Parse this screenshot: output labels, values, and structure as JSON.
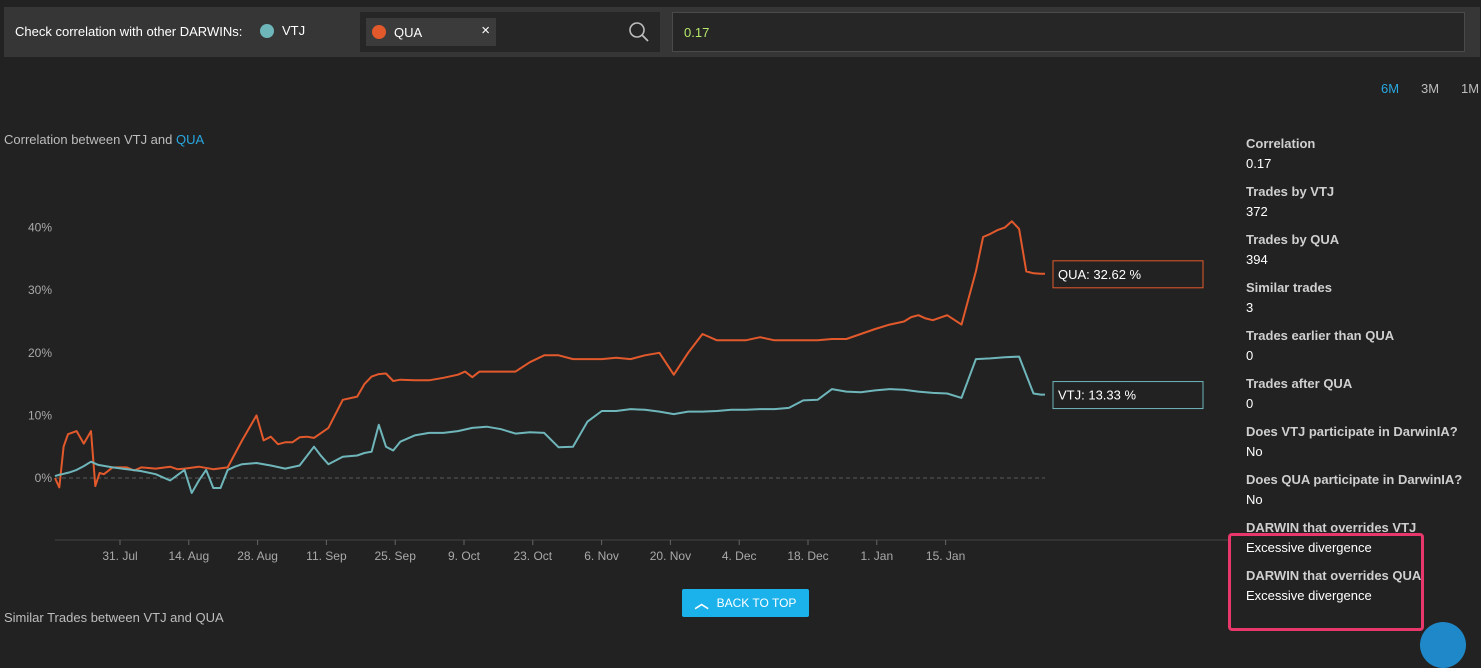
{
  "topbar": {
    "label": "Check correlation with other DARWINs:",
    "primary": {
      "name": "VTJ",
      "color": "#6fb6bb"
    },
    "compare": {
      "name": "QUA",
      "color": "#e2592c",
      "close": "×"
    },
    "search_icon": "search-icon",
    "correlation_value": "0.17"
  },
  "ranges": [
    {
      "label": "6M",
      "active": true
    },
    {
      "label": "3M",
      "active": false
    },
    {
      "label": "1M",
      "active": false
    }
  ],
  "chart_title": {
    "prefix": "Correlation between VTJ and",
    "highlight": "QUA"
  },
  "chart_data": {
    "type": "line",
    "yticks": [
      "40%",
      "30%",
      "20%",
      "10%",
      "0%"
    ],
    "ylim": [
      -10,
      50
    ],
    "xticks": [
      "31. Jul",
      "14. Aug",
      "28. Aug",
      "11. Sep",
      "25. Sep",
      "9. Oct",
      "23. Oct",
      "6. Nov",
      "20. Nov",
      "4. Dec",
      "18. Dec",
      "1. Jan",
      "15. Jan"
    ],
    "tooltips": [
      {
        "series": "QUA",
        "text": "QUA: 32.62 %"
      },
      {
        "series": "VTJ",
        "text": "VTJ: 13.33 %"
      }
    ],
    "series": [
      {
        "name": "QUA",
        "color": "#e2592c",
        "x": [
          0,
          0.6,
          1.2,
          1.8,
          3,
          4,
          5,
          5.6,
          6.2,
          6.8,
          8,
          10,
          11,
          12,
          14,
          16,
          17,
          18,
          20,
          22,
          24,
          26,
          28,
          29,
          30,
          31,
          32,
          33,
          34,
          35,
          36,
          38,
          40,
          42,
          43,
          44,
          45,
          46,
          47,
          48,
          50,
          52,
          54,
          56,
          57,
          58,
          59,
          60,
          62,
          64,
          66,
          68,
          70,
          72,
          74,
          76,
          78,
          80,
          82,
          84,
          86,
          88,
          90,
          92,
          94,
          96,
          98,
          100,
          102,
          104,
          106,
          108,
          110,
          112,
          114,
          116,
          118,
          119,
          120,
          121,
          122,
          124,
          126,
          128,
          129,
          130,
          131,
          132,
          133,
          134,
          135,
          136,
          137,
          137.6
        ],
        "y": [
          0,
          -1.5,
          5,
          7,
          7.5,
          5.5,
          7.5,
          -1.3,
          0.8,
          0.6,
          1.7,
          1.7,
          1.2,
          1.7,
          1.5,
          1.8,
          1.4,
          1.5,
          1.8,
          1.4,
          1.7,
          6,
          10,
          6,
          6.6,
          5.4,
          5.7,
          5.7,
          6.5,
          6.6,
          6.4,
          8,
          12.5,
          13,
          15,
          16.2,
          16.6,
          16.7,
          15.5,
          15.7,
          15.6,
          15.6,
          16,
          16.5,
          17,
          16.1,
          17,
          17,
          17,
          17,
          18.5,
          19.6,
          19.6,
          19,
          19,
          19,
          19.2,
          19,
          19.6,
          20,
          16.5,
          20,
          23,
          22,
          22,
          22,
          22.5,
          22,
          22,
          22,
          22,
          22.2,
          22.2,
          23,
          23.8,
          24.5,
          25,
          25.7,
          26,
          25.5,
          25.2,
          26,
          24.5,
          33,
          38.5,
          39,
          39.6,
          40,
          41,
          39.8,
          33,
          32.7,
          32.62,
          32.62
        ]
      },
      {
        "name": "VTJ",
        "color": "#6fb6bb",
        "x": [
          0,
          0.5,
          1,
          2,
          3,
          4,
          5,
          6,
          8,
          10,
          12,
          14,
          16,
          18,
          19,
          20,
          21,
          22,
          23,
          24,
          25,
          26,
          28,
          30,
          32,
          34,
          36,
          37,
          38,
          40,
          42,
          43,
          44,
          45,
          46,
          47,
          48,
          50,
          52,
          54,
          56,
          58,
          60,
          62,
          64,
          66,
          68,
          70,
          72,
          74,
          76,
          78,
          80,
          82,
          84,
          86,
          88,
          90,
          92,
          94,
          96,
          98,
          100,
          102,
          104,
          106,
          108,
          110,
          112,
          114,
          116,
          118,
          120,
          122,
          124,
          126,
          128,
          130,
          132,
          134,
          136,
          137,
          137.6
        ],
        "y": [
          0.3,
          0.5,
          0.6,
          0.9,
          1.3,
          1.9,
          2.6,
          2.1,
          1.7,
          1.4,
          1.1,
          0.6,
          -0.4,
          1.3,
          -2.4,
          -0.4,
          1.3,
          -1.6,
          -1.6,
          1.3,
          1.8,
          2.2,
          2.4,
          2,
          1.5,
          2,
          5,
          3.5,
          2.2,
          3.4,
          3.6,
          4,
          4.2,
          8.5,
          5,
          4.4,
          5.8,
          6.8,
          7.2,
          7.2,
          7.5,
          8,
          8.2,
          7.8,
          7.1,
          7.3,
          7.2,
          4.9,
          5,
          9,
          10.7,
          10.7,
          11,
          10.9,
          10.6,
          10.2,
          10.6,
          10.6,
          10.7,
          10.9,
          10.9,
          11,
          11,
          11.2,
          12.4,
          12.5,
          14.2,
          13.8,
          13.7,
          14,
          14.2,
          14.1,
          13.8,
          13.6,
          13.5,
          12.8,
          19,
          19.1,
          19.3,
          19.4,
          13.5,
          13.33,
          13.33
        ]
      }
    ]
  },
  "stats": [
    {
      "label": "Correlation",
      "value": "0.17"
    },
    {
      "label": "Trades by VTJ",
      "value": "372"
    },
    {
      "label": "Trades by QUA",
      "value": "394"
    },
    {
      "label": "Similar trades",
      "value": "3"
    },
    {
      "label": "Trades earlier than QUA",
      "value": "0"
    },
    {
      "label": "Trades after QUA",
      "value": "0"
    },
    {
      "label": "Does VTJ participate in DarwinIA?",
      "value": "No"
    },
    {
      "label": "Does QUA participate in DarwinIA?",
      "value": "No"
    },
    {
      "label": "DARWIN that overrides VTJ",
      "value": "Excessive divergence"
    },
    {
      "label": "DARWIN that overrides QUA",
      "value": "Excessive divergence"
    }
  ],
  "back_to_top": "BACK TO TOP",
  "similar_title": "Similar Trades between VTJ and QUA"
}
